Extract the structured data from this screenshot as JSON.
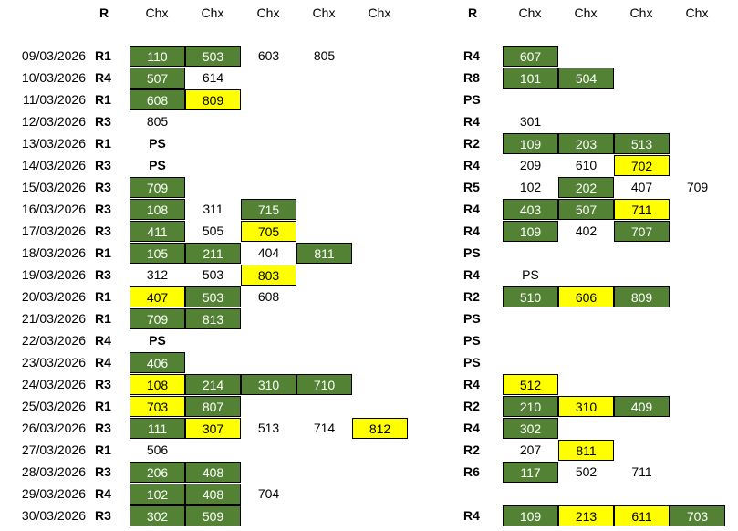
{
  "colors": {
    "green": "#548235",
    "yellow": "#ffff00"
  },
  "header_left": {
    "r": "R",
    "chx": [
      "Chx",
      "Chx",
      "Chx",
      "Chx",
      "Chx"
    ]
  },
  "header_right": {
    "r": "R",
    "chx": [
      "Chx",
      "Chx",
      "Chx",
      "Chx"
    ]
  },
  "rows": [
    {
      "date": "09/03/2026",
      "lr": "R1",
      "left": [
        {
          "v": "110",
          "c": "g"
        },
        {
          "v": "503",
          "c": "g"
        },
        {
          "v": "603",
          "c": "w"
        },
        {
          "v": "805",
          "c": "w"
        }
      ],
      "rr": "R4",
      "right": [
        {
          "v": "607",
          "c": "g"
        }
      ]
    },
    {
      "date": "10/03/2026",
      "lr": "R4",
      "left": [
        {
          "v": "507",
          "c": "g"
        },
        {
          "v": "614",
          "c": "w"
        }
      ],
      "rr": "R8",
      "right": [
        {
          "v": "101",
          "c": "g"
        },
        {
          "v": "504",
          "c": "g"
        }
      ]
    },
    {
      "date": "11/03/2026",
      "lr": "R1",
      "left": [
        {
          "v": "608",
          "c": "g"
        },
        {
          "v": "809",
          "c": "y"
        }
      ],
      "rr": "PS",
      "right": []
    },
    {
      "date": "12/03/2026",
      "lr": "R3",
      "left": [
        {
          "v": "805",
          "c": "w"
        }
      ],
      "rr": "R4",
      "right": [
        {
          "v": "301",
          "c": "w"
        }
      ]
    },
    {
      "date": "13/03/2026",
      "lr": "R1",
      "left": [
        {
          "v": "PS",
          "c": "ps"
        }
      ],
      "rr": "R2",
      "right": [
        {
          "v": "109",
          "c": "g"
        },
        {
          "v": "203",
          "c": "g"
        },
        {
          "v": "513",
          "c": "g"
        }
      ]
    },
    {
      "date": "14/03/2026",
      "lr": "R3",
      "left": [
        {
          "v": "PS",
          "c": "ps"
        }
      ],
      "rr": "R4",
      "right": [
        {
          "v": "209",
          "c": "w"
        },
        {
          "v": "610",
          "c": "w"
        },
        {
          "v": "702",
          "c": "y"
        }
      ]
    },
    {
      "date": "15/03/2026",
      "lr": "R3",
      "left": [
        {
          "v": "709",
          "c": "g"
        }
      ],
      "rr": "R5",
      "right": [
        {
          "v": "102",
          "c": "w"
        },
        {
          "v": "202",
          "c": "g"
        },
        {
          "v": "407",
          "c": "w"
        },
        {
          "v": "709",
          "c": "w"
        }
      ]
    },
    {
      "date": "16/03/2026",
      "lr": "R3",
      "left": [
        {
          "v": "108",
          "c": "g"
        },
        {
          "v": "311",
          "c": "w"
        },
        {
          "v": "715",
          "c": "g"
        }
      ],
      "rr": "R4",
      "right": [
        {
          "v": "403",
          "c": "g"
        },
        {
          "v": "507",
          "c": "g"
        },
        {
          "v": "711",
          "c": "y"
        }
      ]
    },
    {
      "date": "17/03/2026",
      "lr": "R3",
      "left": [
        {
          "v": "411",
          "c": "g"
        },
        {
          "v": "505",
          "c": "w"
        },
        {
          "v": "705",
          "c": "y"
        }
      ],
      "rr": "R4",
      "right": [
        {
          "v": "109",
          "c": "g"
        },
        {
          "v": "402",
          "c": "w"
        },
        {
          "v": "707",
          "c": "g"
        }
      ]
    },
    {
      "date": "18/03/2026",
      "lr": "R1",
      "left": [
        {
          "v": "105",
          "c": "g"
        },
        {
          "v": "211",
          "c": "g"
        },
        {
          "v": "404",
          "c": "w"
        },
        {
          "v": "811",
          "c": "g"
        }
      ],
      "rr": "PS",
      "right": []
    },
    {
      "date": "19/03/2026",
      "lr": "R3",
      "left": [
        {
          "v": "312",
          "c": "w"
        },
        {
          "v": "503",
          "c": "w"
        },
        {
          "v": "803",
          "c": "y"
        }
      ],
      "rr": "R4",
      "right": [
        {
          "v": "PS",
          "c": "w"
        }
      ]
    },
    {
      "date": "20/03/2026",
      "lr": "R1",
      "left": [
        {
          "v": "407",
          "c": "y"
        },
        {
          "v": "503",
          "c": "g"
        },
        {
          "v": "608",
          "c": "w"
        }
      ],
      "rr": "R2",
      "right": [
        {
          "v": "510",
          "c": "g"
        },
        {
          "v": "606",
          "c": "y"
        },
        {
          "v": "809",
          "c": "g"
        }
      ]
    },
    {
      "date": "21/03/2026",
      "lr": "R1",
      "left": [
        {
          "v": "709",
          "c": "g"
        },
        {
          "v": "813",
          "c": "g"
        }
      ],
      "rr": "PS",
      "right": []
    },
    {
      "date": "22/03/2026",
      "lr": "R4",
      "left": [
        {
          "v": "PS",
          "c": "ps"
        }
      ],
      "rr": "PS",
      "right": []
    },
    {
      "date": "23/03/2026",
      "lr": "R4",
      "left": [
        {
          "v": "406",
          "c": "g"
        }
      ],
      "rr": "PS",
      "right": []
    },
    {
      "date": "24/03/2026",
      "lr": "R3",
      "left": [
        {
          "v": "108",
          "c": "y"
        },
        {
          "v": "214",
          "c": "g"
        },
        {
          "v": "310",
          "c": "g"
        },
        {
          "v": "710",
          "c": "g"
        }
      ],
      "rr": "R4",
      "right": [
        {
          "v": "512",
          "c": "y"
        }
      ]
    },
    {
      "date": "25/03/2026",
      "lr": "R1",
      "left": [
        {
          "v": "703",
          "c": "y"
        },
        {
          "v": "807",
          "c": "g"
        }
      ],
      "rr": "R2",
      "right": [
        {
          "v": "210",
          "c": "g"
        },
        {
          "v": "310",
          "c": "y"
        },
        {
          "v": "409",
          "c": "g"
        }
      ]
    },
    {
      "date": "26/03/2026",
      "lr": "R3",
      "left": [
        {
          "v": "111",
          "c": "g"
        },
        {
          "v": "307",
          "c": "y"
        },
        {
          "v": "513",
          "c": "w"
        },
        {
          "v": "714",
          "c": "w"
        },
        {
          "v": "812",
          "c": "y"
        }
      ],
      "rr": "R4",
      "right": [
        {
          "v": "302",
          "c": "g"
        }
      ]
    },
    {
      "date": "27/03/2026",
      "lr": "R1",
      "left": [
        {
          "v": "506",
          "c": "w"
        }
      ],
      "rr": "R2",
      "right": [
        {
          "v": "207",
          "c": "w"
        },
        {
          "v": "811",
          "c": "y"
        }
      ]
    },
    {
      "date": "28/03/2026",
      "lr": "R3",
      "left": [
        {
          "v": "206",
          "c": "g"
        },
        {
          "v": "408",
          "c": "g"
        }
      ],
      "rr": "R6",
      "right": [
        {
          "v": "117",
          "c": "g"
        },
        {
          "v": "502",
          "c": "w"
        },
        {
          "v": "711",
          "c": "w"
        }
      ]
    },
    {
      "date": "29/03/2026",
      "lr": "R4",
      "left": [
        {
          "v": "102",
          "c": "g"
        },
        {
          "v": "408",
          "c": "g"
        },
        {
          "v": "704",
          "c": "w"
        }
      ],
      "rr": "",
      "right": []
    },
    {
      "date": "30/03/2026",
      "lr": "R3",
      "left": [
        {
          "v": "302",
          "c": "g"
        },
        {
          "v": "509",
          "c": "g"
        }
      ],
      "rr": "R4",
      "right": [
        {
          "v": "109",
          "c": "g"
        },
        {
          "v": "213",
          "c": "y"
        },
        {
          "v": "611",
          "c": "y"
        },
        {
          "v": "703",
          "c": "g"
        }
      ]
    }
  ]
}
